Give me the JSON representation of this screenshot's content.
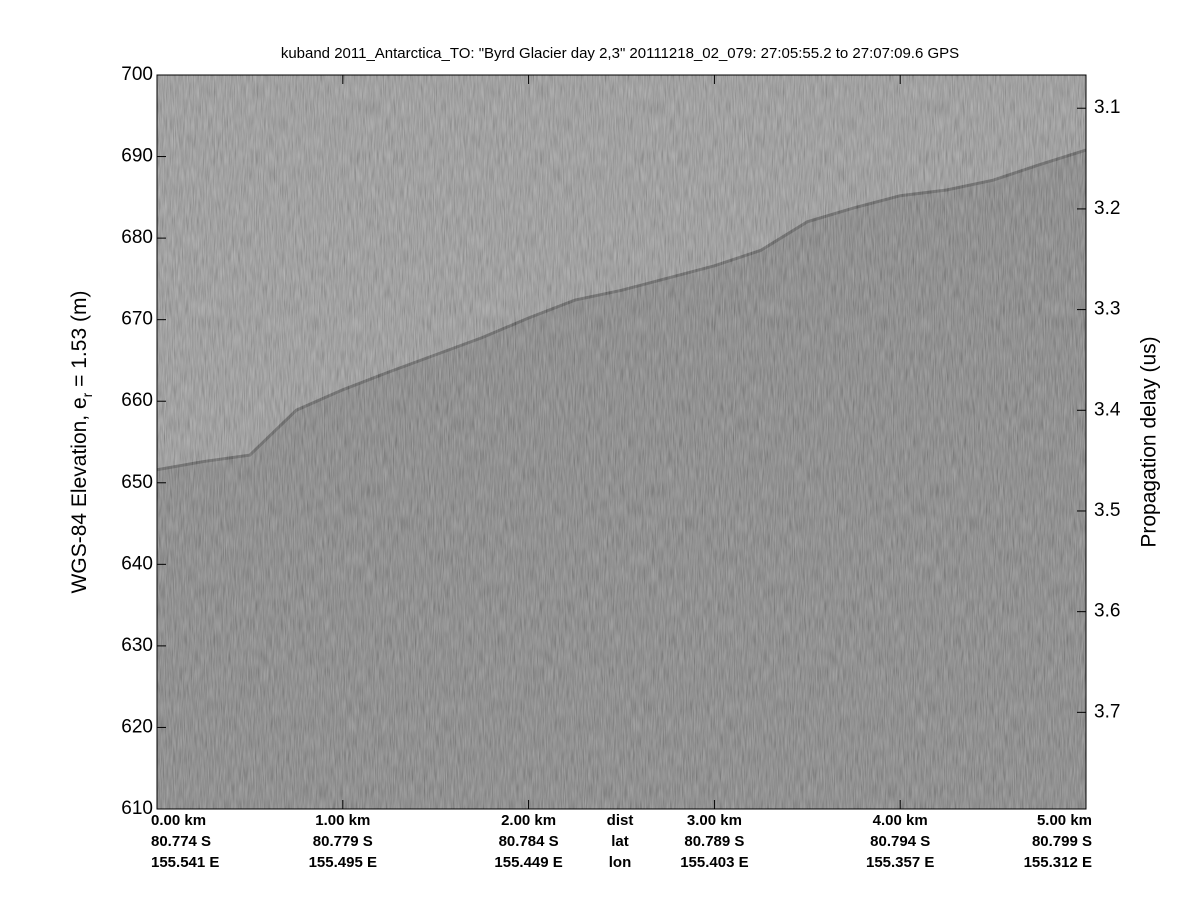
{
  "chart_data": {
    "type": "line",
    "title": "kuband 2011_Antarctica_TO: \"Byrd Glacier day 2,3\"  20111218_02_079: 27:05:55.2 to 27:07:09.6 GPS",
    "ylabel": [
      "WGS-84 Elevation, e",
      "r",
      " = 1.53 (m)"
    ],
    "y2label": "Propagation delay (us)",
    "xlim": [
      0,
      5
    ],
    "xticks": [
      {
        "value": 0,
        "label": "0.00 km"
      },
      {
        "value": 1,
        "label": "1.00 km"
      },
      {
        "value": 2,
        "label": "2.00 km"
      },
      {
        "value": 3,
        "label": "3.00 km"
      },
      {
        "value": 4,
        "label": "4.00 km"
      },
      {
        "value": 5,
        "label": "5.00 km"
      }
    ],
    "xtick_lat": [
      "80.774 S",
      "80.779 S",
      "80.784 S",
      "80.789 S",
      "80.794 S",
      "80.799 S"
    ],
    "xtick_lon": [
      "155.541 E",
      "155.495 E",
      "155.449 E",
      "155.403 E",
      "155.357 E",
      "155.312 E"
    ],
    "row_labels": [
      "dist",
      "lat",
      "lon"
    ],
    "ylim": [
      610,
      700
    ],
    "yticks": [
      610,
      620,
      630,
      640,
      650,
      660,
      670,
      680,
      690,
      700
    ],
    "y2lim": [
      3.796,
      3.067
    ],
    "y2ticks": [
      3.1,
      3.2,
      3.3,
      3.4,
      3.5,
      3.6,
      3.7
    ],
    "x": [
      0,
      0.25,
      0.5,
      0.75,
      1.0,
      1.25,
      1.5,
      1.75,
      2.0,
      2.25,
      2.5,
      2.75,
      3.0,
      3.25,
      3.5,
      3.75,
      4.0,
      4.25,
      4.5,
      4.75,
      5.0
    ],
    "series": [
      {
        "color": "#3a3a3a",
        "values": [
          651.6,
          652.6,
          653.4,
          658.9,
          661.4,
          663.6,
          665.7,
          667.8,
          670.2,
          672.4,
          673.6,
          675.1,
          676.6,
          678.5,
          682.0,
          683.7,
          685.2,
          685.9,
          687.1,
          689.0,
          690.8
        ]
      }
    ]
  }
}
